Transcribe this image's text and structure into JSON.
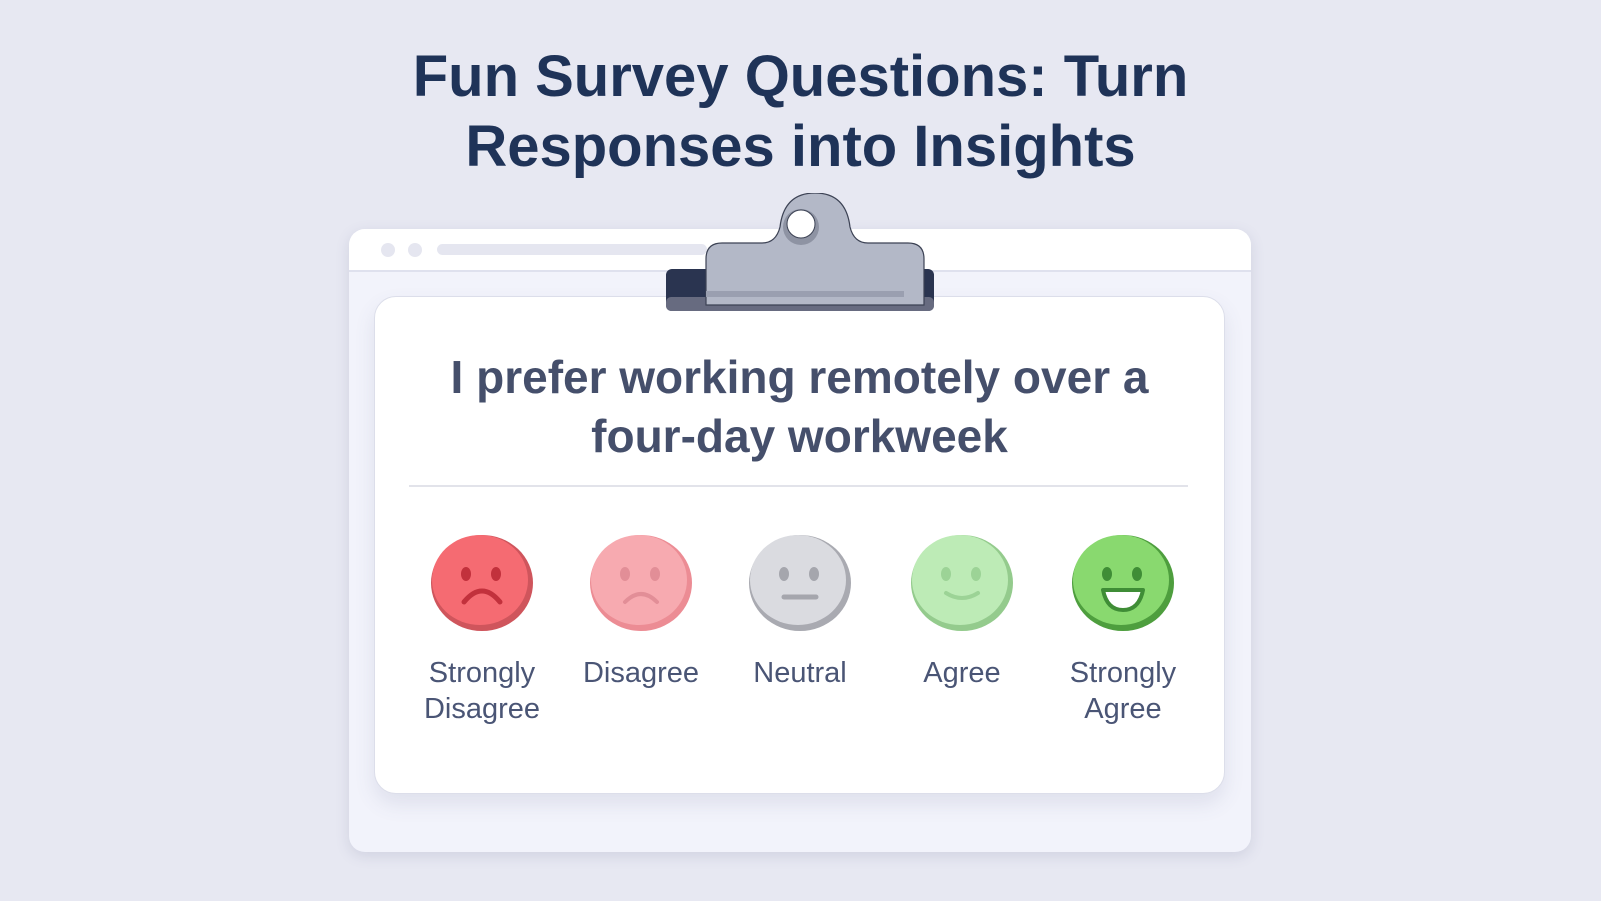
{
  "title": {
    "line1": "Fun Survey Questions: Turn",
    "line2": "Responses into Insights"
  },
  "survey": {
    "question_line1": "I prefer working remotely over a",
    "question_line2": "four-day workweek",
    "options": [
      {
        "label1": "Strongly",
        "label2": "Disagree",
        "face": "very-sad",
        "color": "#f56b72",
        "edge": "#cf555c",
        "feature": "#c2313c"
      },
      {
        "label1": "Disagree",
        "label2": "",
        "face": "sad",
        "color": "#f7aab0",
        "edge": "#ec8c94",
        "feature": "#e28e97"
      },
      {
        "label1": "Neutral",
        "label2": "",
        "face": "neutral",
        "color": "#dadbe0",
        "edge": "#a9aab1",
        "feature": "#a5a6ad"
      },
      {
        "label1": "Agree",
        "label2": "",
        "face": "smile",
        "color": "#bdebb6",
        "edge": "#94cb8d",
        "feature": "#9cd396"
      },
      {
        "label1": "Strongly",
        "label2": "Agree",
        "face": "big-smile",
        "color": "#89d96f",
        "edge": "#4e9e3e",
        "feature": "#3f8d36"
      }
    ]
  }
}
